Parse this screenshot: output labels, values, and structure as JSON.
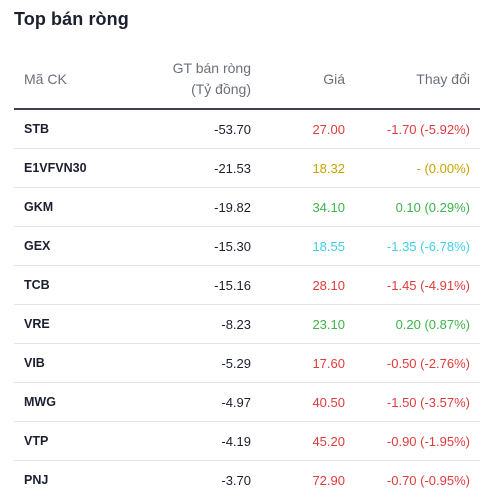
{
  "panel": {
    "title": "Top bán ròng"
  },
  "table": {
    "headers": {
      "code": "Mã CK",
      "value_line1": "GT bán ròng",
      "value_line2": "(Tỷ đồng)",
      "price": "Giá",
      "change": "Thay đổi"
    },
    "rows": [
      {
        "code": "STB",
        "net_value": "-53.70",
        "price": "27.00",
        "change": "-1.70 (-5.92%)",
        "color": "red"
      },
      {
        "code": "E1VFVN30",
        "net_value": "-21.53",
        "price": "18.32",
        "change": "- (0.00%)",
        "color": "yellow"
      },
      {
        "code": "GKM",
        "net_value": "-19.82",
        "price": "34.10",
        "change": "0.10 (0.29%)",
        "color": "green"
      },
      {
        "code": "GEX",
        "net_value": "-15.30",
        "price": "18.55",
        "change": "-1.35 (-6.78%)",
        "color": "cyan"
      },
      {
        "code": "TCB",
        "net_value": "-15.16",
        "price": "28.10",
        "change": "-1.45 (-4.91%)",
        "color": "red"
      },
      {
        "code": "VRE",
        "net_value": "-8.23",
        "price": "23.10",
        "change": "0.20 (0.87%)",
        "color": "green"
      },
      {
        "code": "VIB",
        "net_value": "-5.29",
        "price": "17.60",
        "change": "-0.50 (-2.76%)",
        "color": "red"
      },
      {
        "code": "MWG",
        "net_value": "-4.97",
        "price": "40.50",
        "change": "-1.50 (-3.57%)",
        "color": "red"
      },
      {
        "code": "VTP",
        "net_value": "-4.19",
        "price": "45.20",
        "change": "-0.90 (-1.95%)",
        "color": "red"
      },
      {
        "code": "PNJ",
        "net_value": "-3.70",
        "price": "72.90",
        "change": "-0.70 (-0.95%)",
        "color": "red"
      }
    ]
  },
  "colors": {
    "red": "#e03b3b",
    "yellow": "#c9a200",
    "green": "#3db34a",
    "cyan": "#3fd0e6"
  }
}
